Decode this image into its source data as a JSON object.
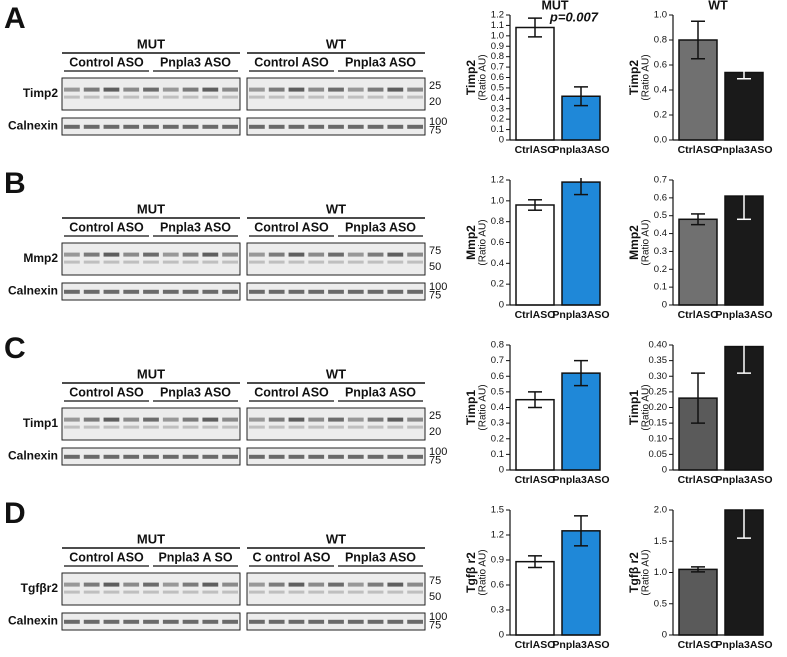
{
  "panels": [
    {
      "letter": "A",
      "groups": [
        {
          "title": "MUT",
          "subgroups": [
            "Control ASO",
            "Pnpla3 ASO"
          ]
        },
        {
          "title": "WT",
          "subgroups": [
            "Control ASO",
            "Pnpla3 ASO"
          ]
        }
      ],
      "rows": [
        {
          "label": "Timp2",
          "markers": [
            "25",
            "20"
          ]
        },
        {
          "label": "Calnexin",
          "markers": [
            "100",
            "75"
          ]
        }
      ]
    },
    {
      "letter": "B",
      "groups": [
        {
          "title": "MUT",
          "subgroups": [
            "Control ASO",
            "Pnpla3 ASO"
          ]
        },
        {
          "title": "WT",
          "subgroups": [
            "Control ASO",
            "Pnpla3 ASO"
          ]
        }
      ],
      "rows": [
        {
          "label": "Mmp2",
          "markers": [
            "75",
            "50"
          ]
        },
        {
          "label": "Calnexin",
          "markers": [
            "100",
            "75"
          ]
        }
      ]
    },
    {
      "letter": "C",
      "groups": [
        {
          "title": "MUT",
          "subgroups": [
            "Control ASO",
            "Pnpla3 ASO"
          ]
        },
        {
          "title": "WT",
          "subgroups": [
            "Control ASO",
            "Pnpla3 ASO"
          ]
        }
      ],
      "rows": [
        {
          "label": "Timp1",
          "markers": [
            "25",
            "20"
          ]
        },
        {
          "label": "Calnexin",
          "markers": [
            "100",
            "75"
          ]
        }
      ]
    },
    {
      "letter": "D",
      "groups": [
        {
          "title": "MUT",
          "subgroups": [
            "Control ASO",
            "Pnpla3 A  SO"
          ]
        },
        {
          "title": "WT",
          "subgroups": [
            "C ontrol ASO",
            "Pnpla3 ASO"
          ]
        }
      ],
      "rows": [
        {
          "label": "Tgfβr2",
          "markers": [
            "75",
            "50"
          ]
        },
        {
          "label": "Calnexin",
          "markers": [
            "100",
            "75"
          ]
        }
      ]
    }
  ],
  "chart_data": [
    {
      "type": "bar",
      "title": "MUT",
      "annotation": "p=0.007",
      "ylabel": "Timp2",
      "ylabel_sub": "(Ratio AU)",
      "categories": [
        "CtrlASO",
        "Pnpla3ASO"
      ],
      "values": [
        1.08,
        0.42
      ],
      "errors": [
        0.09,
        0.09
      ],
      "colors": [
        "#ffffff",
        "#1f88d8"
      ],
      "error_colors": [
        "#111111",
        "#111111"
      ],
      "ylim": [
        0,
        1.2
      ],
      "yticks": [
        0,
        0.1,
        0.2,
        0.3,
        0.4,
        0.5,
        0.6,
        0.7,
        0.8,
        0.9,
        {
          "value": 1,
          "label": "1.0"
        },
        1.1,
        1.2
      ]
    },
    {
      "type": "bar",
      "title": "WT",
      "ylabel": "Timp2",
      "ylabel_sub": "(Ratio AU)",
      "categories": [
        "CtrlASO",
        "Pnpla3ASO"
      ],
      "values": [
        0.8,
        0.54
      ],
      "errors": [
        0.15,
        0.05
      ],
      "colors": [
        "#707070",
        "#1a1a1a"
      ],
      "error_colors": [
        "#111111",
        "#ffffff"
      ],
      "ylim": [
        0,
        1
      ],
      "yticks": [
        {
          "value": 0,
          "label": "0.0"
        },
        0.2,
        0.4,
        0.6,
        0.8,
        {
          "value": 1,
          "label": "1.0"
        }
      ]
    },
    {
      "type": "bar",
      "ylabel": "Mmp2",
      "ylabel_sub": "(Ratio AU)",
      "categories": [
        "CtrlASO",
        "Pnpla3ASO"
      ],
      "values": [
        0.96,
        1.18
      ],
      "errors": [
        0.05,
        0.12
      ],
      "colors": [
        "#ffffff",
        "#1f88d8"
      ],
      "error_colors": [
        "#111111",
        "#111111"
      ],
      "ylim": [
        0,
        1.2
      ],
      "yticks": [
        0,
        0.2,
        0.4,
        0.6,
        0.8,
        {
          "value": 1,
          "label": "1.0"
        },
        1.2
      ]
    },
    {
      "type": "bar",
      "ylabel": "Mmp2",
      "ylabel_sub": "(Ratio AU)",
      "categories": [
        "CtrlASO",
        "Pnpla3ASO"
      ],
      "values": [
        0.48,
        0.61
      ],
      "errors": [
        0.03,
        0.13
      ],
      "colors": [
        "#707070",
        "#1a1a1a"
      ],
      "error_colors": [
        "#111111",
        "#ffffff"
      ],
      "ylim": [
        0,
        0.7
      ],
      "yticks": [
        0,
        0.1,
        0.2,
        0.3,
        0.4,
        0.5,
        0.6,
        0.7
      ]
    },
    {
      "type": "bar",
      "ylabel": "Timp1",
      "ylabel_sub": "(Ratio AU)",
      "categories": [
        "CtrlASO",
        "Pnpla3ASO"
      ],
      "values": [
        0.45,
        0.62
      ],
      "errors": [
        0.05,
        0.08
      ],
      "colors": [
        "#ffffff",
        "#1f88d8"
      ],
      "error_colors": [
        "#111111",
        "#111111"
      ],
      "ylim": [
        0,
        0.8
      ],
      "yticks": [
        0,
        0.1,
        0.2,
        0.3,
        0.4,
        0.5,
        0.6,
        0.7,
        0.8
      ]
    },
    {
      "type": "bar",
      "ylabel": "Timp1",
      "ylabel_sub": "(Ratio AU)",
      "categories": [
        "CtrlASO",
        "Pnpla3ASO"
      ],
      "values": [
        0.23,
        0.395
      ],
      "errors": [
        0.08,
        0.085
      ],
      "colors": [
        "#5a5a5a",
        "#1a1a1a"
      ],
      "error_colors": [
        "#111111",
        "#ffffff"
      ],
      "ylim": [
        0,
        0.4
      ],
      "yticks": [
        0,
        0.05,
        {
          "value": 0.1,
          "label": "0.10"
        },
        0.15,
        {
          "value": 0.2,
          "label": "0.20"
        },
        0.25,
        {
          "value": 0.3,
          "label": "0.30"
        },
        0.35,
        {
          "value": 0.4,
          "label": "0.40"
        }
      ]
    },
    {
      "type": "bar",
      "ylabel": "Tgfβ r2",
      "ylabel_sub": "(Ratio AU)",
      "categories": [
        "CtrlASO",
        "Pnpla3ASO"
      ],
      "values": [
        0.88,
        1.25
      ],
      "errors": [
        0.07,
        0.18
      ],
      "colors": [
        "#ffffff",
        "#1f88d8"
      ],
      "error_colors": [
        "#111111",
        "#111111"
      ],
      "ylim": [
        0,
        1.5
      ],
      "yticks": [
        0,
        0.3,
        0.6,
        0.9,
        1.2,
        1.5
      ]
    },
    {
      "type": "bar",
      "ylabel": "Tgfβ r2",
      "ylabel_sub": "(Ratio AU)",
      "categories": [
        "CtrlASO",
        "Pnpla3ASO"
      ],
      "values": [
        1.05,
        2
      ],
      "errors": [
        0.04,
        0.45
      ],
      "colors": [
        "#5a5a5a",
        "#1a1a1a"
      ],
      "error_colors": [
        "#111111",
        "#ffffff"
      ],
      "ylim": [
        0,
        2
      ],
      "yticks": [
        0,
        0.5,
        {
          "value": 1,
          "label": "1.0"
        },
        1.5,
        {
          "value": 2,
          "label": "2.0"
        }
      ]
    }
  ]
}
